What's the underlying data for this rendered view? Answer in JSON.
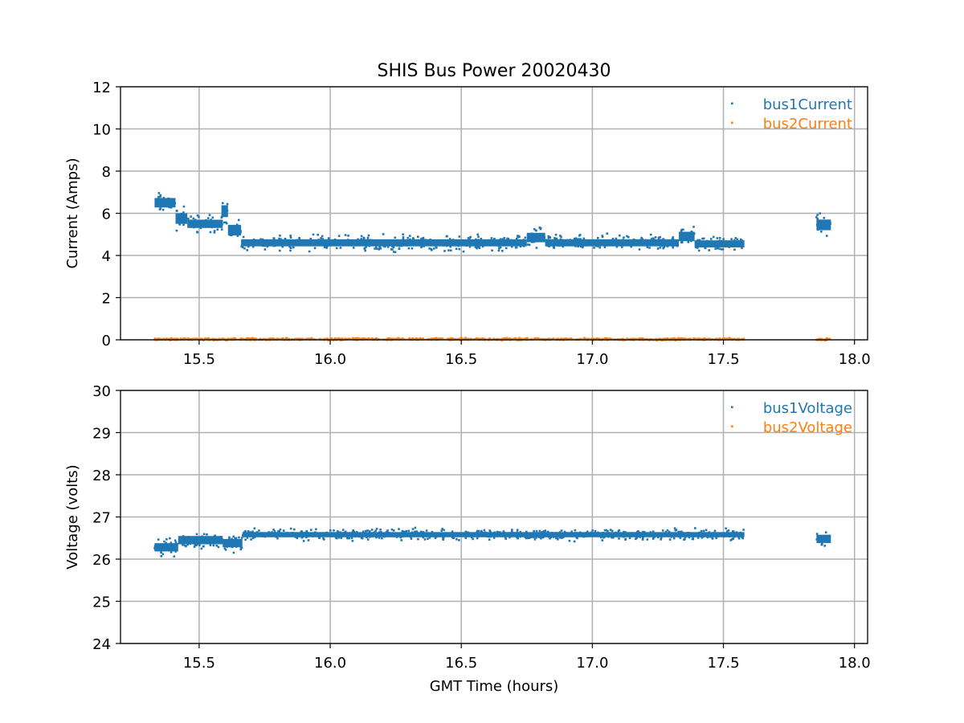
{
  "figure": {
    "title": "SHIS Bus Power 20020430"
  },
  "colors": {
    "series1": "#1f77b4",
    "series2": "#ff7f0e",
    "grid": "#b0b0b0",
    "axes": "#000000"
  },
  "chart_data": [
    {
      "type": "scatter",
      "title": "SHIS Bus Power 20020430",
      "xlabel": "",
      "ylabel": "Current (Amps)",
      "xlim": [
        15.2,
        18.05
      ],
      "ylim": [
        0,
        12
      ],
      "xticks": [
        15.5,
        16.0,
        16.5,
        17.0,
        17.5,
        18.0
      ],
      "xtick_labels": [
        "15.5",
        "16.0",
        "16.5",
        "17.0",
        "17.5",
        "18.0"
      ],
      "yticks": [
        0,
        2,
        4,
        6,
        8,
        10,
        12
      ],
      "ytick_labels": [
        "0",
        "2",
        "4",
        "6",
        "8",
        "10",
        "12"
      ],
      "grid": true,
      "legend_position": "top-right",
      "series": [
        {
          "name": "bus1Current",
          "color": "#1f77b4",
          "segments": [
            {
              "x": [
                15.33,
                15.41
              ],
              "y": 6.5,
              "spread": 0.8
            },
            {
              "x": [
                15.41,
                15.455
              ],
              "y": 5.75,
              "spread": 0.9
            },
            {
              "x": [
                15.455,
                15.59
              ],
              "y": 5.5,
              "spread": 0.7
            },
            {
              "x": [
                15.585,
                15.61
              ],
              "y": 6.1,
              "spread": 1.0
            },
            {
              "x": [
                15.61,
                15.66
              ],
              "y": 5.2,
              "spread": 0.9
            },
            {
              "x": [
                15.66,
                16.75
              ],
              "y": 4.6,
              "spread": 0.6
            },
            {
              "x": [
                16.75,
                16.82
              ],
              "y": 4.85,
              "spread": 0.8
            },
            {
              "x": [
                16.82,
                17.33
              ],
              "y": 4.6,
              "spread": 0.6
            },
            {
              "x": [
                17.33,
                17.39
              ],
              "y": 4.9,
              "spread": 0.8
            },
            {
              "x": [
                17.39,
                17.58
              ],
              "y": 4.55,
              "spread": 0.6
            },
            {
              "x": [
                17.855,
                17.91
              ],
              "y": 5.45,
              "spread": 0.9
            }
          ]
        },
        {
          "name": "bus2Current",
          "color": "#ff7f0e",
          "segments": [
            {
              "x": [
                15.33,
                17.58
              ],
              "y": 0.03,
              "spread": 0.08
            },
            {
              "x": [
                17.855,
                17.91
              ],
              "y": 0.03,
              "spread": 0.08
            }
          ]
        }
      ]
    },
    {
      "type": "scatter",
      "title": "",
      "xlabel": "GMT Time (hours)",
      "ylabel": "Voltage (volts)",
      "xlim": [
        15.2,
        18.05
      ],
      "ylim": [
        24,
        30
      ],
      "xticks": [
        15.5,
        16.0,
        16.5,
        17.0,
        17.5,
        18.0
      ],
      "xtick_labels": [
        "15.5",
        "16.0",
        "16.5",
        "17.0",
        "17.5",
        "18.0"
      ],
      "yticks": [
        24,
        25,
        26,
        27,
        28,
        29,
        30
      ],
      "ytick_labels": [
        "24",
        "25",
        "26",
        "27",
        "28",
        "29",
        "30"
      ],
      "grid": true,
      "legend_position": "top-right",
      "series": [
        {
          "name": "bus1Voltage",
          "color": "#1f77b4",
          "segments": [
            {
              "x": [
                15.33,
                15.42
              ],
              "y": 26.28,
              "spread": 0.35
            },
            {
              "x": [
                15.42,
                15.59
              ],
              "y": 26.45,
              "spread": 0.35
            },
            {
              "x": [
                15.59,
                15.665
              ],
              "y": 26.38,
              "spread": 0.35
            },
            {
              "x": [
                15.665,
                17.58
              ],
              "y": 26.58,
              "spread": 0.22
            },
            {
              "x": [
                17.855,
                17.91
              ],
              "y": 26.48,
              "spread": 0.35
            }
          ]
        },
        {
          "name": "bus2Voltage",
          "color": "#ff7f0e",
          "segments": []
        }
      ]
    }
  ]
}
